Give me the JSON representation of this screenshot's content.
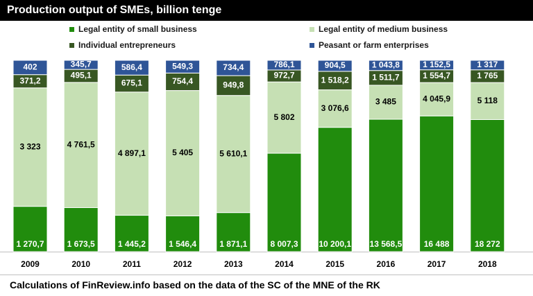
{
  "title": "Production output of SMEs, billion tenge",
  "footer": "Calculations of FinReview.info based on the data of the SC of the MNE of the RK",
  "colors": {
    "small": "#218c0d",
    "medium": "#c6e0b4",
    "individual": "#385723",
    "peasant": "#2f5597"
  },
  "legend": {
    "small": "Legal entity of small business",
    "medium": "Legal entity of medium business",
    "individual": "Individual entrepreneurs",
    "peasant": "Peasant or farm enterprises"
  },
  "chart_data": {
    "type": "bar",
    "stacked": "percent",
    "title": "Production output of SMEs, billion tenge",
    "categories": [
      "2009",
      "2010",
      "2011",
      "2012",
      "2013",
      "2014",
      "2015",
      "2016",
      "2017",
      "2018"
    ],
    "series": [
      {
        "key": "small",
        "name": "Legal entity of small business",
        "values": [
          1270.7,
          1673.5,
          1445.2,
          1546.4,
          1871.1,
          8007.3,
          10200.1,
          13568.5,
          16488,
          18272
        ],
        "labels": [
          "1 270,7",
          "1 673,5",
          "1 445,2",
          "1 546,4",
          "1 871,1",
          "8 007,3",
          "10 200,1",
          "13 568,5",
          "16 488",
          "18 272"
        ]
      },
      {
        "key": "medium",
        "name": "Legal entity of medium business",
        "values": [
          3323,
          4761.5,
          4897.1,
          5405,
          5610.1,
          5802,
          3076.6,
          3485,
          4045.9,
          5118
        ],
        "labels": [
          "3 323",
          "4 761,5",
          "4 897,1",
          "5 405",
          "5 610,1",
          "5 802",
          "3 076,6",
          "3 485",
          "4 045,9",
          "5 118"
        ]
      },
      {
        "key": "individual",
        "name": "Individual entrepreneurs",
        "values": [
          371.2,
          495.1,
          675.1,
          754.4,
          949.8,
          972.7,
          1518.2,
          1511.7,
          1554.7,
          1765
        ],
        "labels": [
          "371,2",
          "495,1",
          "675,1",
          "754,4",
          "949,8",
          "972,7",
          "1 518,2",
          "1 511,7",
          "1 554,7",
          "1 765"
        ]
      },
      {
        "key": "peasant",
        "name": "Peasant or farm enterprises",
        "values": [
          402,
          345.7,
          586.4,
          549.3,
          734.4,
          786.1,
          904.5,
          1043.8,
          1152.5,
          1317
        ],
        "labels": [
          "402",
          "345,7",
          "586,4",
          "549,3",
          "734,4",
          "786,1",
          "904,5",
          "1 043,8",
          "1 152,5",
          "1 317"
        ]
      }
    ],
    "legend_position": "top",
    "grid": false
  }
}
